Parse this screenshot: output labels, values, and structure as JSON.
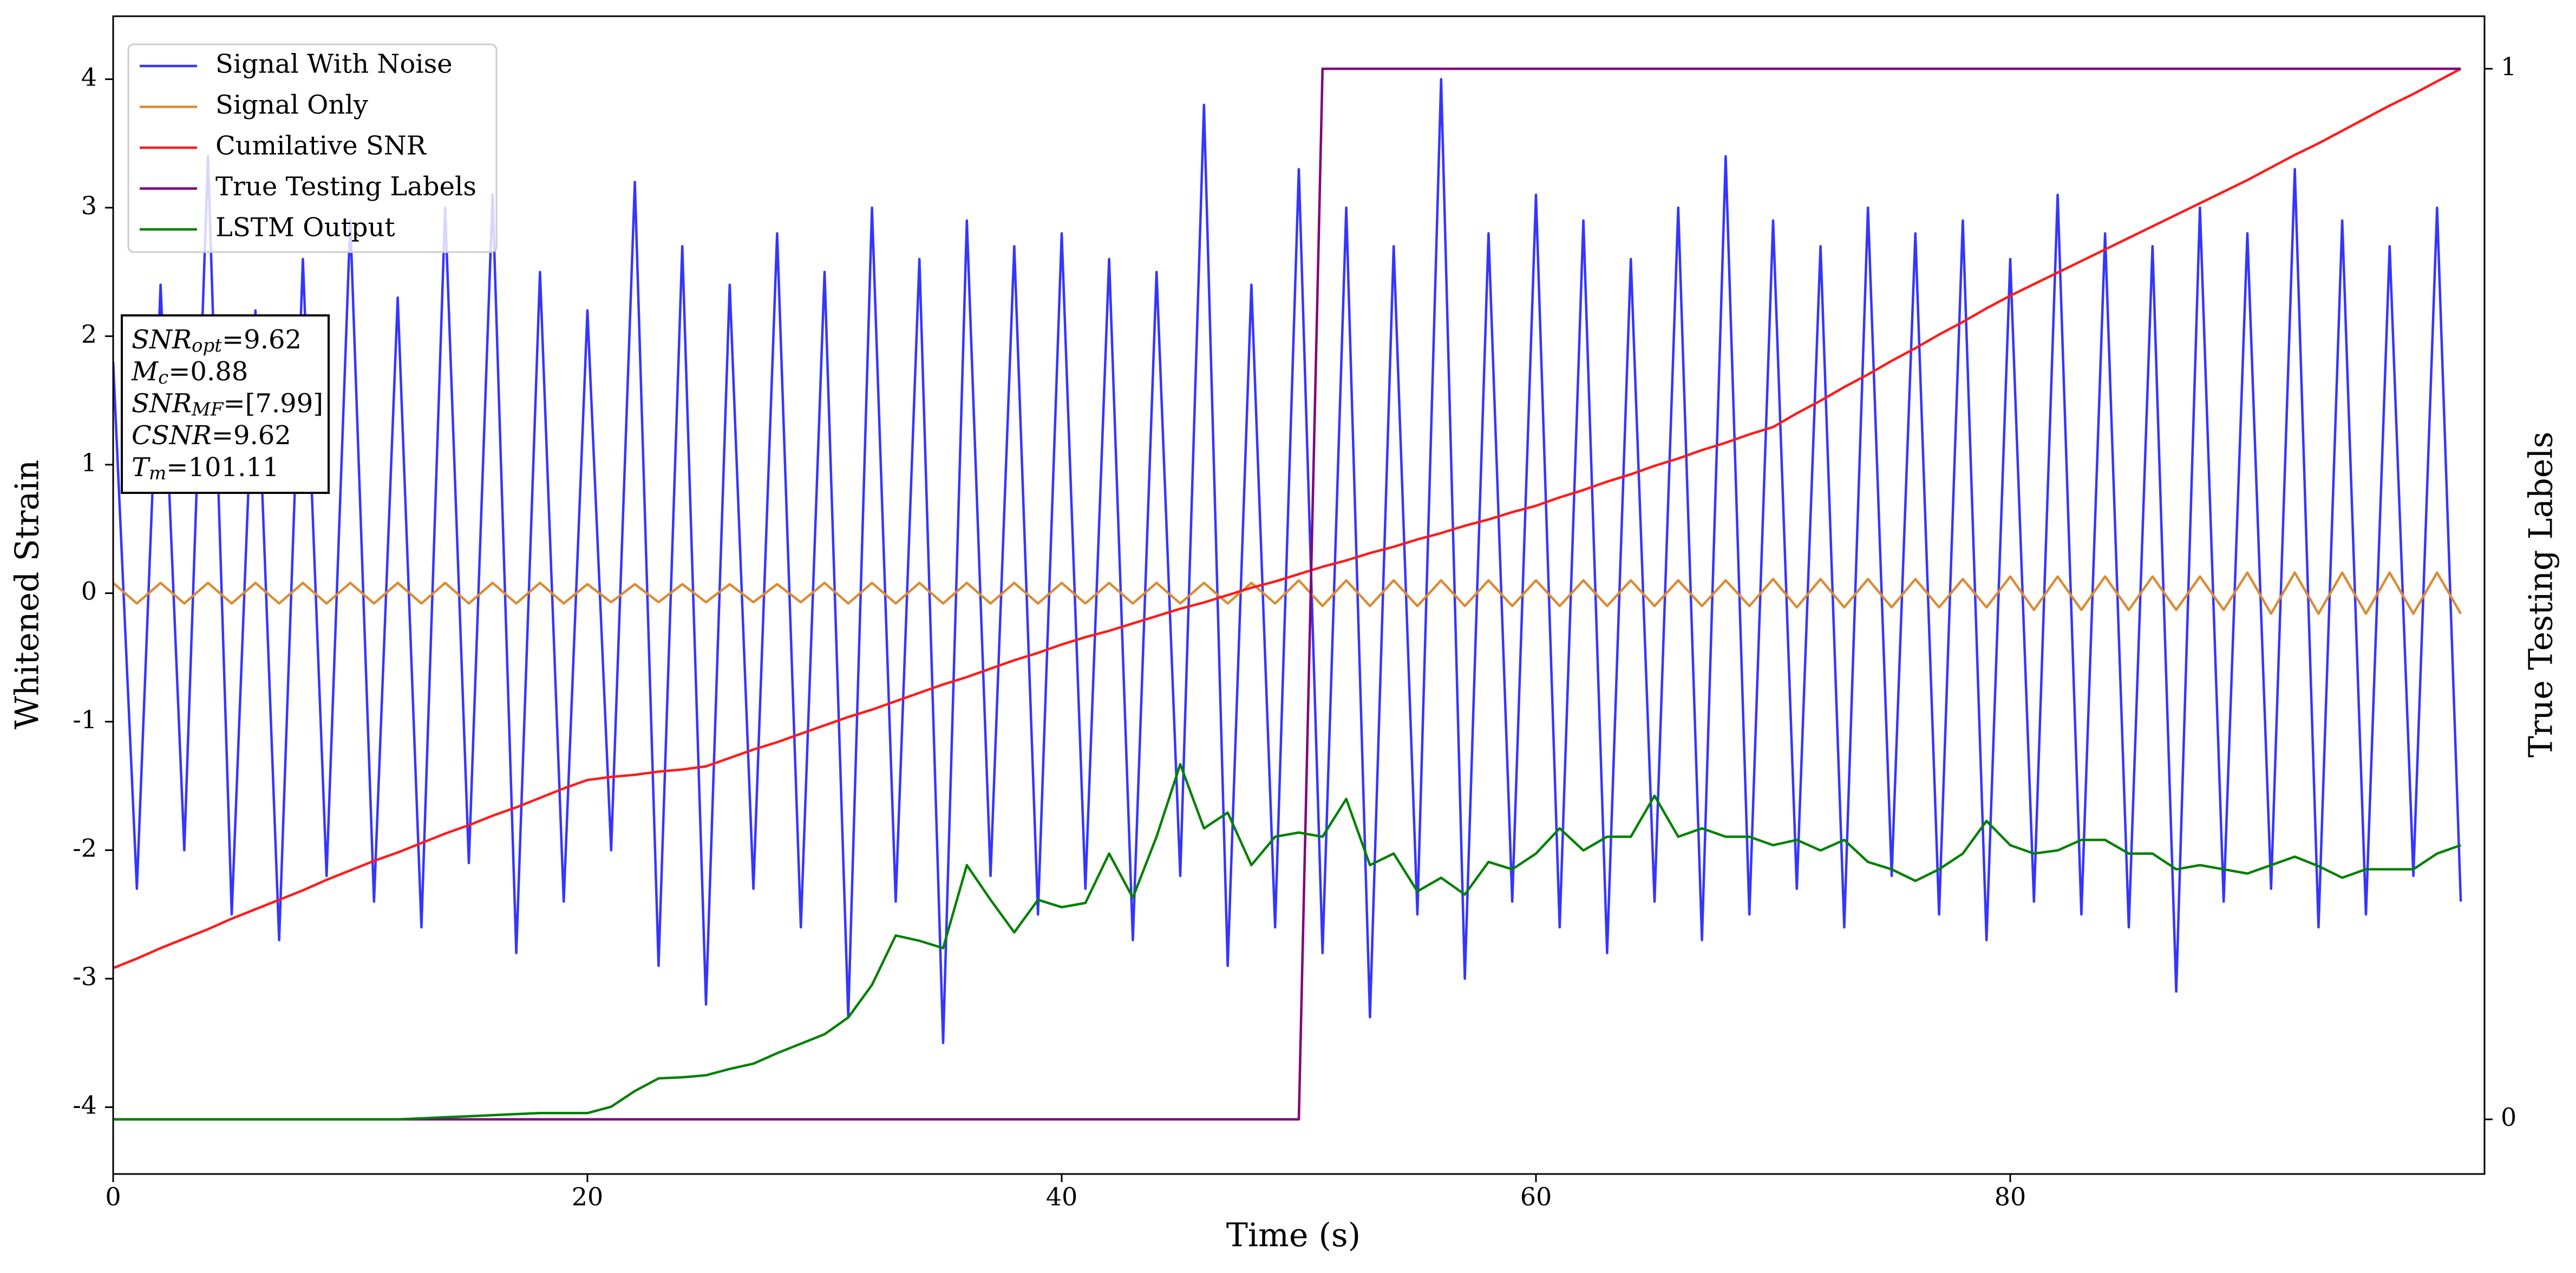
{
  "chart_data": {
    "type": "line",
    "xlabel": "Time (s)",
    "ylabel": "Whitened Strain",
    "y2label": "True Testing Labels",
    "xlim": [
      0,
      100
    ],
    "ylim": [
      -4.52,
      4.49
    ],
    "y2lim": [
      -0.052,
      1.05
    ],
    "xticks": [
      0,
      20,
      40,
      60,
      80
    ],
    "yticks": [
      -4,
      -3,
      -2,
      -1,
      0,
      1,
      2,
      3,
      4
    ],
    "y2ticks": [
      0,
      1
    ],
    "grid": false,
    "legend": "upper left",
    "x": [
      0,
      1,
      2,
      3,
      4,
      5,
      6,
      7,
      8,
      9,
      10,
      11,
      12,
      13,
      14,
      15,
      16,
      17,
      18,
      19,
      20,
      21,
      22,
      23,
      24,
      25,
      26,
      27,
      28,
      29,
      30,
      31,
      32,
      33,
      34,
      35,
      36,
      37,
      38,
      39,
      40,
      41,
      42,
      43,
      44,
      45,
      46,
      47,
      48,
      49,
      50,
      51,
      52,
      53,
      54,
      55,
      56,
      57,
      58,
      59,
      60,
      61,
      62,
      63,
      64,
      65,
      66,
      67,
      68,
      69,
      70,
      71,
      72,
      73,
      74,
      75,
      76,
      77,
      78,
      79,
      80,
      81,
      82,
      83,
      84,
      85,
      86,
      87,
      88,
      89,
      90,
      91,
      92,
      93,
      94,
      95,
      96,
      97,
      98,
      99
    ],
    "series": [
      {
        "name": "Signal With Noise",
        "color": "#3535ff",
        "axis": "y",
        "values": [
          1.8,
          -2.3,
          2.4,
          -2.0,
          3.4,
          -2.5,
          2.2,
          -2.7,
          2.6,
          -2.2,
          2.9,
          -2.4,
          2.3,
          -2.6,
          3.0,
          -2.1,
          3.1,
          -2.8,
          2.5,
          -2.4,
          2.2,
          -2.0,
          3.2,
          -2.9,
          2.7,
          -3.2,
          2.4,
          -2.3,
          2.8,
          -2.6,
          2.5,
          -3.3,
          3.0,
          -2.4,
          2.6,
          -3.5,
          2.9,
          -2.2,
          2.7,
          -2.5,
          2.8,
          -2.3,
          2.6,
          -2.7,
          2.5,
          -2.2,
          3.8,
          -2.9,
          2.4,
          -2.6,
          3.3,
          -2.8,
          3.0,
          -3.3,
          2.7,
          -2.5,
          4.0,
          -3.0,
          2.8,
          -2.4,
          3.1,
          -2.6,
          2.9,
          -2.8,
          2.6,
          -2.4,
          3.0,
          -2.7,
          3.4,
          -2.5,
          2.9,
          -2.3,
          2.7,
          -2.6,
          3.0,
          -2.2,
          2.8,
          -2.5,
          2.9,
          -2.7,
          2.6,
          -2.4,
          3.1,
          -2.5,
          2.8,
          -2.6,
          2.7,
          -3.1,
          3.0,
          -2.4,
          2.8,
          -2.3,
          3.3,
          -2.6,
          2.9,
          -2.5,
          2.7,
          -2.2,
          3.0,
          -2.4
        ]
      },
      {
        "name": "Signal Only",
        "color": "#d98c35",
        "axis": "y",
        "values": [
          0.08,
          -0.08,
          0.08,
          -0.08,
          0.08,
          -0.08,
          0.08,
          -0.08,
          0.08,
          -0.08,
          0.08,
          -0.08,
          0.08,
          -0.08,
          0.08,
          -0.08,
          0.08,
          -0.08,
          0.08,
          -0.08,
          0.07,
          -0.07,
          0.07,
          -0.07,
          0.07,
          -0.07,
          0.07,
          -0.07,
          0.07,
          -0.07,
          0.08,
          -0.08,
          0.08,
          -0.08,
          0.08,
          -0.08,
          0.08,
          -0.08,
          0.08,
          -0.08,
          0.08,
          -0.08,
          0.08,
          -0.08,
          0.08,
          -0.08,
          0.08,
          -0.08,
          0.08,
          -0.08,
          0.1,
          -0.1,
          0.1,
          -0.1,
          0.1,
          -0.1,
          0.1,
          -0.1,
          0.1,
          -0.1,
          0.1,
          -0.1,
          0.1,
          -0.1,
          0.1,
          -0.1,
          0.1,
          -0.1,
          0.1,
          -0.1,
          0.11,
          -0.11,
          0.11,
          -0.11,
          0.11,
          -0.11,
          0.11,
          -0.11,
          0.11,
          -0.11,
          0.13,
          -0.13,
          0.13,
          -0.13,
          0.13,
          -0.13,
          0.13,
          -0.13,
          0.13,
          -0.13,
          0.16,
          -0.16,
          0.16,
          -0.16,
          0.16,
          -0.16,
          0.16,
          -0.16,
          0.16,
          -0.16
        ]
      },
      {
        "name": "Cumilative SNR",
        "color": "#ff1a1a",
        "axis": "y2",
        "values": [
          0.144,
          0.153,
          0.163,
          0.172,
          0.181,
          0.191,
          0.2,
          0.209,
          0.218,
          0.228,
          0.237,
          0.246,
          0.254,
          0.263,
          0.272,
          0.28,
          0.289,
          0.297,
          0.306,
          0.315,
          0.323,
          0.326,
          0.328,
          0.331,
          0.333,
          0.336,
          0.344,
          0.352,
          0.359,
          0.367,
          0.375,
          0.383,
          0.39,
          0.398,
          0.406,
          0.414,
          0.421,
          0.429,
          0.437,
          0.444,
          0.452,
          0.459,
          0.465,
          0.472,
          0.479,
          0.486,
          0.492,
          0.499,
          0.506,
          0.512,
          0.519,
          0.526,
          0.532,
          0.539,
          0.545,
          0.552,
          0.558,
          0.565,
          0.571,
          0.578,
          0.584,
          0.592,
          0.599,
          0.607,
          0.614,
          0.622,
          0.629,
          0.637,
          0.644,
          0.652,
          0.659,
          0.672,
          0.684,
          0.697,
          0.709,
          0.722,
          0.734,
          0.747,
          0.759,
          0.772,
          0.784,
          0.795,
          0.806,
          0.817,
          0.828,
          0.839,
          0.85,
          0.861,
          0.872,
          0.883,
          0.894,
          0.906,
          0.918,
          0.929,
          0.941,
          0.953,
          0.965,
          0.976,
          0.988,
          1.0
        ]
      },
      {
        "name": "True Testing Labels",
        "color": "#800080",
        "axis": "y2",
        "values": [
          0,
          0,
          0,
          0,
          0,
          0,
          0,
          0,
          0,
          0,
          0,
          0,
          0,
          0,
          0,
          0,
          0,
          0,
          0,
          0,
          0,
          0,
          0,
          0,
          0,
          0,
          0,
          0,
          0,
          0,
          0,
          0,
          0,
          0,
          0,
          0,
          0,
          0,
          0,
          0,
          0,
          0,
          0,
          0,
          0,
          0,
          0,
          0,
          0,
          0,
          0,
          1,
          1,
          1,
          1,
          1,
          1,
          1,
          1,
          1,
          1,
          1,
          1,
          1,
          1,
          1,
          1,
          1,
          1,
          1,
          1,
          1,
          1,
          1,
          1,
          1,
          1,
          1,
          1,
          1,
          1,
          1,
          1,
          1,
          1,
          1,
          1,
          1,
          1,
          1,
          1,
          1,
          1,
          1,
          1,
          1,
          1,
          1,
          1,
          1
        ]
      },
      {
        "name": "LSTM Output",
        "color": "#008000",
        "axis": "y2",
        "values": [
          0,
          0,
          0,
          0,
          0,
          0,
          0,
          0,
          0,
          0,
          0,
          0,
          0,
          0.001,
          0.002,
          0.003,
          0.004,
          0.005,
          0.006,
          0.006,
          0.006,
          0.012,
          0.027,
          0.039,
          0.04,
          0.042,
          0.048,
          0.053,
          0.063,
          0.072,
          0.081,
          0.097,
          0.128,
          0.175,
          0.17,
          0.163,
          0.242,
          0.209,
          0.178,
          0.209,
          0.202,
          0.206,
          0.253,
          0.211,
          0.269,
          0.338,
          0.277,
          0.292,
          0.242,
          0.269,
          0.273,
          0.269,
          0.305,
          0.242,
          0.253,
          0.217,
          0.23,
          0.214,
          0.245,
          0.238,
          0.253,
          0.277,
          0.256,
          0.269,
          0.269,
          0.308,
          0.269,
          0.277,
          0.269,
          0.269,
          0.261,
          0.266,
          0.256,
          0.266,
          0.245,
          0.238,
          0.227,
          0.238,
          0.253,
          0.284,
          0.261,
          0.253,
          0.256,
          0.266,
          0.266,
          0.253,
          0.253,
          0.238,
          0.242,
          0.238,
          0.234,
          0.242,
          0.25,
          0.241,
          0.23,
          0.238,
          0.238,
          0.238,
          0.253,
          0.261
        ]
      }
    ],
    "annotation": [
      {
        "label": "SNR",
        "sub": "opt",
        "text": "=9.62"
      },
      {
        "label": "M",
        "sub": "c",
        "text": "=0.88"
      },
      {
        "label": "SNR",
        "sub": "MF",
        "text": "=[7.99]"
      },
      {
        "label": "CSNR",
        "sub": null,
        "text": "=9.62"
      },
      {
        "label": "T",
        "sub": "m",
        "text": "=101.11"
      }
    ]
  }
}
